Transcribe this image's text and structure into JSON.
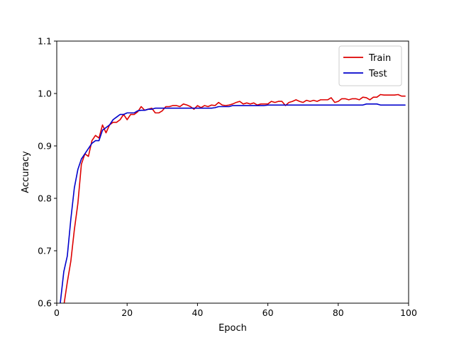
{
  "chart_data": {
    "type": "line",
    "xlabel": "Epoch",
    "ylabel": "Accuracy",
    "xlim": [
      0,
      100
    ],
    "ylim": [
      0.6,
      1.1
    ],
    "xticks": [
      0,
      20,
      40,
      60,
      80,
      100
    ],
    "xtick_labels": [
      "0",
      "20",
      "40",
      "60",
      "80",
      "100"
    ],
    "yticks": [
      0.6,
      0.7,
      0.8,
      0.9,
      1.0,
      1.1
    ],
    "ytick_labels": [
      "0.6",
      "0.7",
      "0.8",
      "0.9",
      "1.0",
      "1.1"
    ],
    "grid": false,
    "legend_position": "top-right",
    "series": [
      {
        "name": "Train",
        "color": "#dd0000",
        "x": [
          1,
          2,
          3,
          4,
          5,
          6,
          7,
          8,
          9,
          10,
          11,
          12,
          13,
          14,
          15,
          16,
          17,
          18,
          19,
          20,
          21,
          22,
          23,
          24,
          25,
          26,
          27,
          28,
          29,
          30,
          31,
          32,
          33,
          34,
          35,
          36,
          37,
          38,
          39,
          40,
          41,
          42,
          43,
          44,
          45,
          46,
          47,
          48,
          49,
          50,
          51,
          52,
          53,
          54,
          55,
          56,
          57,
          58,
          59,
          60,
          61,
          62,
          63,
          64,
          65,
          66,
          67,
          68,
          69,
          70,
          71,
          72,
          73,
          74,
          75,
          76,
          77,
          78,
          79,
          80,
          81,
          82,
          83,
          84,
          85,
          86,
          87,
          88,
          89,
          90,
          91,
          92,
          93,
          94,
          95,
          96,
          97,
          98,
          99
        ],
        "y": [
          0.55,
          0.595,
          0.64,
          0.68,
          0.74,
          0.79,
          0.865,
          0.885,
          0.88,
          0.91,
          0.92,
          0.915,
          0.94,
          0.925,
          0.94,
          0.945,
          0.945,
          0.95,
          0.96,
          0.95,
          0.96,
          0.96,
          0.965,
          0.975,
          0.968,
          0.97,
          0.972,
          0.963,
          0.963,
          0.967,
          0.975,
          0.975,
          0.977,
          0.977,
          0.975,
          0.98,
          0.978,
          0.975,
          0.97,
          0.977,
          0.973,
          0.977,
          0.975,
          0.978,
          0.977,
          0.983,
          0.978,
          0.977,
          0.978,
          0.98,
          0.983,
          0.985,
          0.98,
          0.982,
          0.98,
          0.982,
          0.978,
          0.98,
          0.98,
          0.98,
          0.985,
          0.983,
          0.985,
          0.985,
          0.977,
          0.983,
          0.985,
          0.988,
          0.985,
          0.983,
          0.987,
          0.985,
          0.987,
          0.985,
          0.988,
          0.988,
          0.988,
          0.992,
          0.983,
          0.985,
          0.99,
          0.99,
          0.988,
          0.99,
          0.99,
          0.988,
          0.993,
          0.992,
          0.988,
          0.993,
          0.993,
          0.998,
          0.997,
          0.997,
          0.997,
          0.997,
          0.998,
          0.995,
          0.995
        ]
      },
      {
        "name": "Test",
        "color": "#0000cc",
        "x": [
          1,
          2,
          3,
          4,
          5,
          6,
          7,
          8,
          9,
          10,
          11,
          12,
          13,
          14,
          15,
          16,
          17,
          18,
          19,
          20,
          21,
          22,
          23,
          24,
          25,
          26,
          27,
          28,
          29,
          30,
          31,
          32,
          33,
          34,
          35,
          36,
          37,
          38,
          39,
          40,
          41,
          42,
          43,
          44,
          45,
          46,
          47,
          48,
          49,
          50,
          51,
          52,
          53,
          54,
          55,
          56,
          57,
          58,
          59,
          60,
          61,
          62,
          63,
          64,
          65,
          66,
          67,
          68,
          69,
          70,
          71,
          72,
          73,
          74,
          75,
          76,
          77,
          78,
          79,
          80,
          81,
          82,
          83,
          84,
          85,
          86,
          87,
          88,
          89,
          90,
          91,
          92,
          93,
          94,
          95,
          96,
          97,
          98,
          99
        ],
        "y": [
          0.6,
          0.66,
          0.69,
          0.76,
          0.82,
          0.855,
          0.875,
          0.885,
          0.895,
          0.905,
          0.91,
          0.91,
          0.93,
          0.935,
          0.94,
          0.95,
          0.955,
          0.96,
          0.96,
          0.963,
          0.963,
          0.963,
          0.967,
          0.968,
          0.968,
          0.97,
          0.97,
          0.972,
          0.972,
          0.972,
          0.972,
          0.972,
          0.972,
          0.972,
          0.972,
          0.972,
          0.972,
          0.972,
          0.972,
          0.972,
          0.972,
          0.972,
          0.972,
          0.972,
          0.973,
          0.975,
          0.975,
          0.975,
          0.975,
          0.977,
          0.977,
          0.977,
          0.977,
          0.977,
          0.977,
          0.977,
          0.977,
          0.977,
          0.977,
          0.978,
          0.978,
          0.978,
          0.978,
          0.978,
          0.978,
          0.978,
          0.978,
          0.978,
          0.978,
          0.978,
          0.978,
          0.978,
          0.978,
          0.978,
          0.978,
          0.978,
          0.978,
          0.978,
          0.978,
          0.978,
          0.978,
          0.978,
          0.978,
          0.978,
          0.978,
          0.978,
          0.978,
          0.98,
          0.98,
          0.98,
          0.98,
          0.978,
          0.978,
          0.978,
          0.978,
          0.978,
          0.978,
          0.978,
          0.978
        ]
      }
    ]
  }
}
